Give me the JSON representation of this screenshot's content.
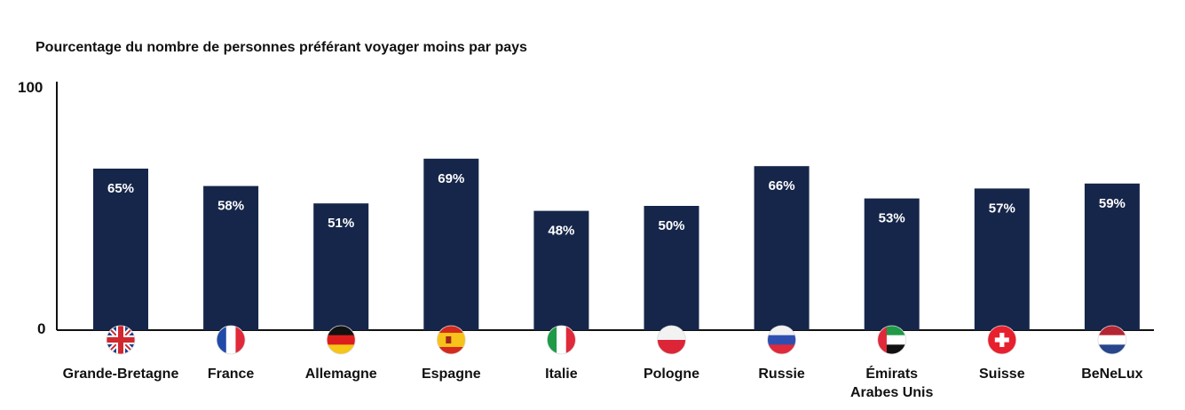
{
  "chart_data": {
    "type": "bar",
    "title": "Pourcentage du nombre de personnes préférant voyager moins par pays",
    "ylim": [
      0,
      100
    ],
    "y_ticks": [
      "0",
      "100"
    ],
    "grid": false,
    "bar_color": "#16264a",
    "categories": [
      {
        "name": "Grande-Bretagne",
        "lines": [
          "Grande-Bretagne"
        ],
        "flag": "uk-flag-icon"
      },
      {
        "name": "France",
        "lines": [
          "France"
        ],
        "flag": "france-flag-icon"
      },
      {
        "name": "Allemagne",
        "lines": [
          "Allemagne"
        ],
        "flag": "germany-flag-icon"
      },
      {
        "name": "Espagne",
        "lines": [
          "Espagne"
        ],
        "flag": "spain-flag-icon"
      },
      {
        "name": "Italie",
        "lines": [
          "Italie"
        ],
        "flag": "italy-flag-icon"
      },
      {
        "name": "Pologne",
        "lines": [
          "Pologne"
        ],
        "flag": "poland-flag-icon"
      },
      {
        "name": "Russie",
        "lines": [
          "Russie"
        ],
        "flag": "russia-flag-icon"
      },
      {
        "name": "Émirats Arabes Unis",
        "lines": [
          "Émirats",
          "Arabes Unis"
        ],
        "flag": "uae-flag-icon"
      },
      {
        "name": "Suisse",
        "lines": [
          "Suisse"
        ],
        "flag": "switzerland-flag-icon"
      },
      {
        "name": "BeNeLux",
        "lines": [
          "BeNeLux"
        ],
        "flag": "netherlands-flag-icon"
      }
    ],
    "values": [
      65,
      58,
      51,
      69,
      48,
      50,
      66,
      53,
      57,
      59
    ],
    "data_labels": [
      "65%",
      "58%",
      "51%",
      "69%",
      "48%",
      "50%",
      "66%",
      "53%",
      "57%",
      "59%"
    ]
  }
}
